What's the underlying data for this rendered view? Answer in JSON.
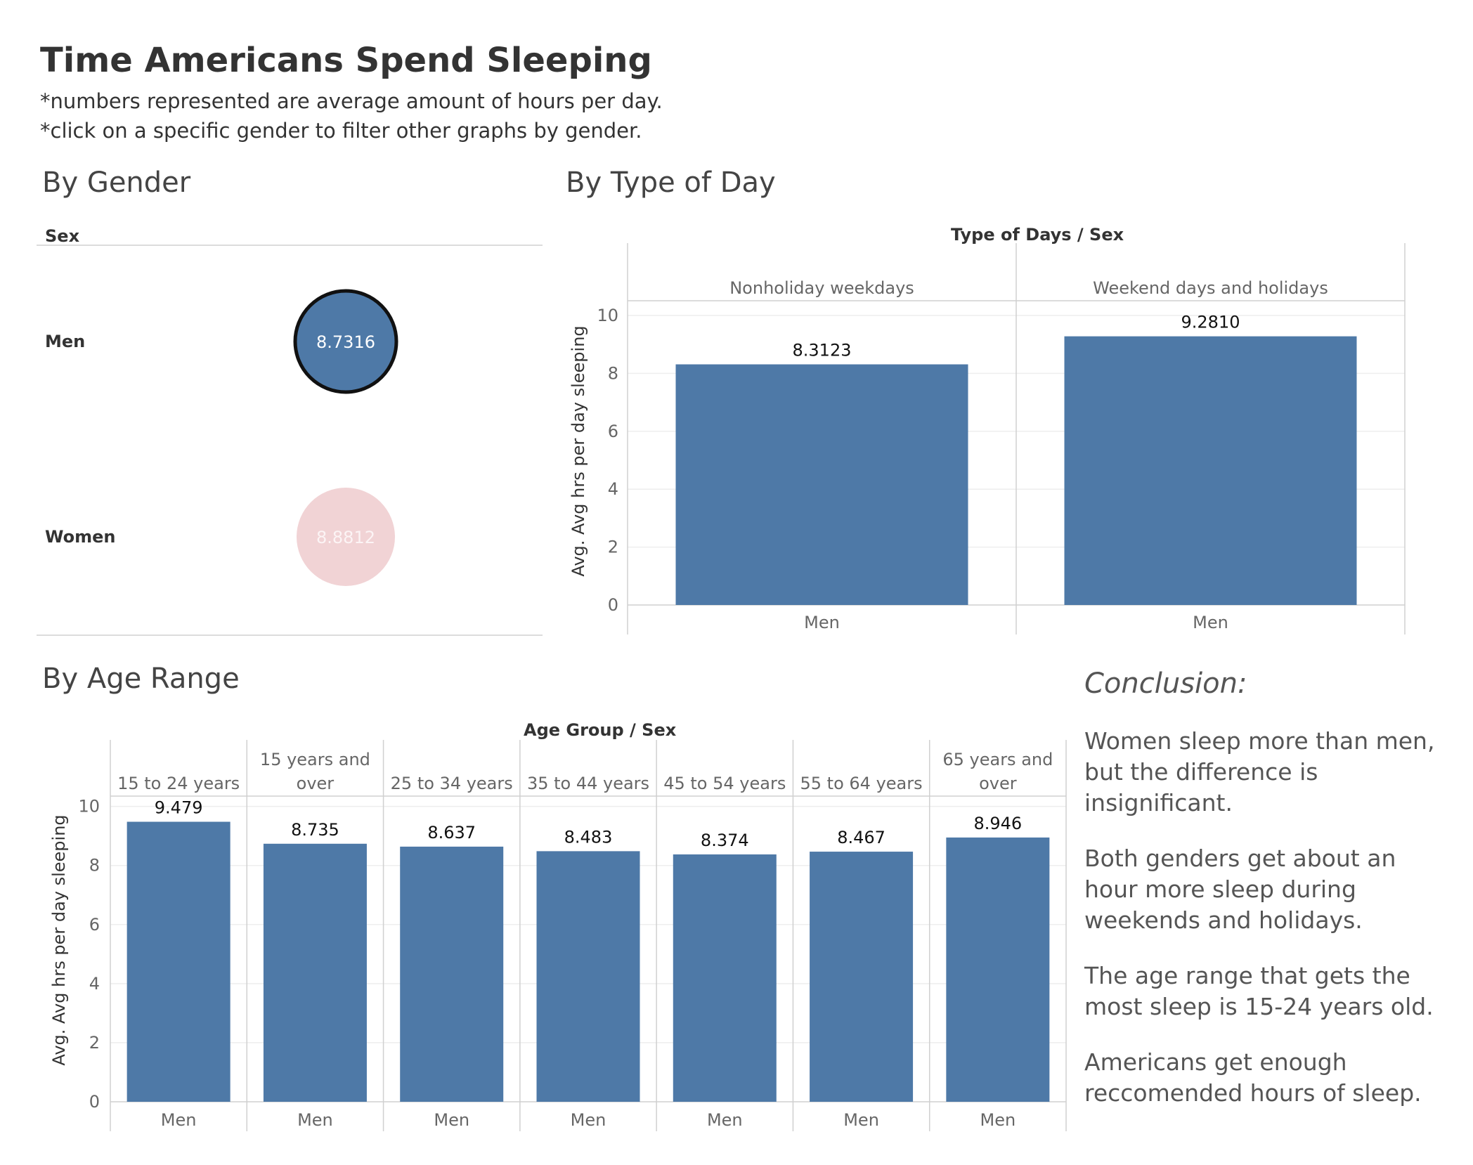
{
  "title": "Time Americans Spend Sleeping",
  "subtitle_lines": [
    "*numbers represented are average amount of hours per day.",
    "*click on a specific gender to filter other graphs by gender."
  ],
  "gender_section": {
    "title": "By Gender",
    "header": "Sex"
  },
  "day_section": {
    "title": "By Type of Day",
    "header": "Type of Days  /  Sex"
  },
  "age_section": {
    "title": "By Age Range",
    "header": "Age Group  /  Sex"
  },
  "conclusion": {
    "heading": "Conclusion:",
    "paragraphs": [
      "Women sleep more than men, but the difference is insignificant.",
      "Both genders get about an hour more sleep during weekends and holidays.",
      "The age range that gets the most sleep is 15-24 years old.",
      "Americans get enough reccomended hours of sleep."
    ]
  },
  "colors": {
    "men": "#4e79a7",
    "women": "#f1d3d5",
    "selected_border": "#111111",
    "grid": "#eeeeee",
    "divider": "#d0d0d0"
  },
  "chart_data": [
    {
      "type": "scatter",
      "name": "by-gender",
      "categories": [
        "Men",
        "Women"
      ],
      "values": [
        8.7316,
        8.8812
      ],
      "value_labels": [
        "8.7316",
        "8.8812"
      ],
      "selected": "Men"
    },
    {
      "type": "bar",
      "name": "by-type-of-day",
      "panels": [
        "Nonholiday weekdays",
        "Weekend days and holidays"
      ],
      "categories": [
        "Men",
        "Men"
      ],
      "values": [
        8.3123,
        9.281
      ],
      "value_labels": [
        "8.3123",
        "9.2810"
      ],
      "ylabel": "Avg. Avg hrs per day sleeping",
      "ylim": [
        0,
        12.5
      ],
      "yticks": [
        0,
        2,
        4,
        6,
        8,
        10
      ]
    },
    {
      "type": "bar",
      "name": "by-age-range",
      "panels": [
        "15 to 24 years",
        "15 years and over",
        "25 to 34 years",
        "35 to 44 years",
        "45 to 54 years",
        "55 to 64 years",
        "65 years and over"
      ],
      "panel_lines": [
        [
          "15 to 24 years"
        ],
        [
          "15 years and",
          "over"
        ],
        [
          "25 to 34 years"
        ],
        [
          "35 to 44 years"
        ],
        [
          "45 to 54 years"
        ],
        [
          "55 to 64 years"
        ],
        [
          "65 years and",
          "over"
        ]
      ],
      "categories": [
        "Men",
        "Men",
        "Men",
        "Men",
        "Men",
        "Men",
        "Men"
      ],
      "values": [
        9.479,
        8.735,
        8.637,
        8.483,
        8.374,
        8.467,
        8.946
      ],
      "value_labels": [
        "9.479",
        "8.735",
        "8.637",
        "8.483",
        "8.374",
        "8.467",
        "8.946"
      ],
      "ylabel": "Avg. Avg hrs per day sleeping",
      "ylim": [
        0,
        10.3
      ],
      "yticks": [
        0,
        2,
        4,
        6,
        8,
        10
      ]
    }
  ]
}
